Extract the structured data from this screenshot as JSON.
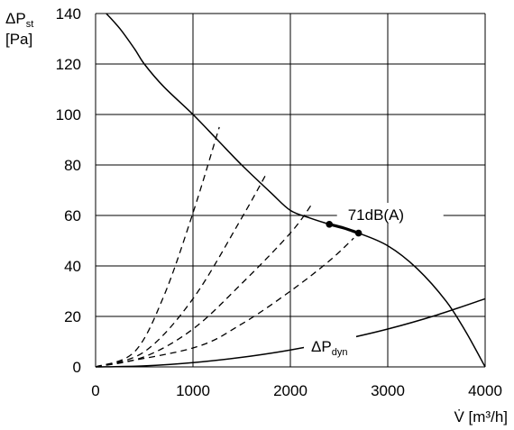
{
  "chart_data": {
    "type": "line",
    "xlabel": "V̇ [m³/h]",
    "ylabel": {
      "main": "ΔP",
      "sub": "st",
      "unit": "[Pa]"
    },
    "xlim": [
      0,
      4000
    ],
    "ylim": [
      0,
      140
    ],
    "x_ticks": [
      0,
      1000,
      2000,
      3000,
      4000
    ],
    "y_ticks": [
      0,
      20,
      40,
      60,
      80,
      100,
      120,
      140
    ],
    "grid": true,
    "colors": {
      "lines": "#000000",
      "grid": "#000000",
      "background": "#ffffff"
    },
    "series": [
      {
        "style": "solid",
        "x": [
          110,
          250,
          400,
          500,
          700,
          1000,
          1250,
          1500,
          1800,
          2000,
          2200,
          2400,
          2700,
          3000,
          3300,
          3600,
          3800,
          4000
        ],
        "y": [
          140,
          134,
          126,
          120,
          111,
          100,
          90,
          80,
          69,
          62,
          59,
          56.5,
          53,
          48,
          39,
          26,
          14,
          0
        ]
      },
      {
        "style": "bold",
        "x": [
          2400,
          2550,
          2700
        ],
        "y": [
          56.5,
          55,
          53
        ]
      },
      {
        "style": "solid",
        "label": {
          "main": "ΔP",
          "sub": "dyn"
        },
        "x": [
          0,
          500,
          1000,
          1500,
          2000,
          2500,
          3000,
          3500,
          4000
        ],
        "y": [
          0,
          0.4,
          1.7,
          3.8,
          6.7,
          10.5,
          15,
          20.5,
          27
        ]
      },
      {
        "style": "dashed",
        "x": [
          0,
          400,
          700,
          1000,
          1270
        ],
        "y": [
          0,
          6,
          28,
          61,
          95
        ]
      },
      {
        "style": "dashed",
        "x": [
          0,
          500,
          1000,
          1500,
          1760
        ],
        "y": [
          0,
          6,
          27,
          59,
          77
        ]
      },
      {
        "style": "dashed",
        "x": [
          0,
          500,
          1000,
          1500,
          2000,
          2230
        ],
        "y": [
          0,
          4,
          15,
          33,
          53,
          65
        ]
      },
      {
        "style": "dashed",
        "x": [
          0,
          1000,
          1500,
          2000,
          2400,
          2650
        ],
        "y": [
          0,
          7.5,
          17,
          30,
          42,
          51
        ]
      }
    ],
    "markers": [
      {
        "x": 2400,
        "y": 56.5
      },
      {
        "x": 2700,
        "y": 53
      }
    ],
    "annotations": [
      {
        "text": "71dB(A)",
        "x": 2590,
        "y": 60
      }
    ]
  }
}
